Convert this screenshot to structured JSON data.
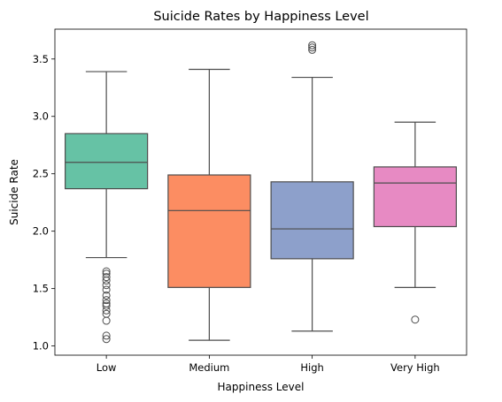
{
  "chart_data": {
    "type": "box",
    "title": "Suicide Rates by Happiness Level",
    "xlabel": "Happiness Level",
    "ylabel": "Suicide Rate",
    "ylim": [
      0.92,
      3.76
    ],
    "yticks": [
      1.0,
      1.5,
      2.0,
      2.5,
      3.0,
      3.5
    ],
    "ytick_labels": [
      "1.0",
      "1.5",
      "2.0",
      "2.5",
      "3.0",
      "3.5"
    ],
    "grid": false,
    "categories": [
      "Low",
      "Medium",
      "High",
      "Very High"
    ],
    "boxes": [
      {
        "category": "Low",
        "color": "#66c2a5",
        "whisker_low": 1.77,
        "q1": 2.37,
        "median": 2.6,
        "q3": 2.85,
        "whisker_high": 3.39,
        "outliers": [
          1.65,
          1.63,
          1.6,
          1.57,
          1.53,
          1.49,
          1.44,
          1.4,
          1.37,
          1.35,
          1.31,
          1.28,
          1.22,
          1.09,
          1.06
        ]
      },
      {
        "category": "Medium",
        "color": "#fc8d62",
        "whisker_low": 1.05,
        "q1": 1.51,
        "median": 2.18,
        "q3": 2.49,
        "whisker_high": 3.41,
        "outliers": []
      },
      {
        "category": "High",
        "color": "#8da0cb",
        "whisker_low": 1.13,
        "q1": 1.76,
        "median": 2.02,
        "q3": 2.43,
        "whisker_high": 3.34,
        "outliers": [
          3.62,
          3.6,
          3.58
        ]
      },
      {
        "category": "Very High",
        "color": "#e78ac3",
        "whisker_low": 1.51,
        "q1": 2.04,
        "median": 2.42,
        "q3": 2.56,
        "whisker_high": 2.95,
        "outliers": [
          1.23
        ]
      }
    ]
  }
}
